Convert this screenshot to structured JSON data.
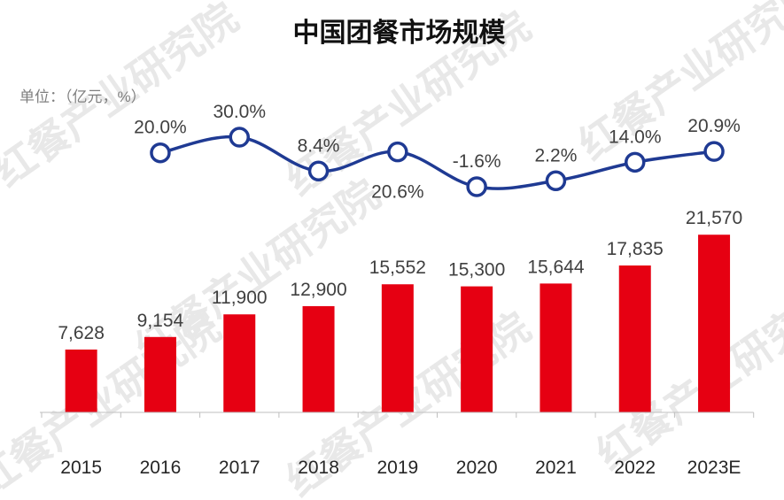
{
  "watermark": "红餐产业研究院",
  "chart_data": {
    "type": "bar+line",
    "title": "中国团餐市场规模",
    "unit_label": "单位：（亿元，%）",
    "categories": [
      "2015",
      "2016",
      "2017",
      "2018",
      "2019",
      "2020",
      "2021",
      "2022",
      "2023E"
    ],
    "series": [
      {
        "type": "bar",
        "values": [
          7628,
          9154,
          11900,
          12900,
          15552,
          15300,
          15644,
          17835,
          21570
        ],
        "labels": [
          "7,628",
          "9,154",
          "11,900",
          "12,900",
          "15,552",
          "15,300",
          "15,644",
          "17,835",
          "21,570"
        ],
        "color": "#e60012"
      },
      {
        "type": "line",
        "values": [
          null,
          20.0,
          30.0,
          8.4,
          20.6,
          -1.6,
          2.2,
          14.0,
          20.9
        ],
        "labels": [
          "",
          "20.0%",
          "30.0%",
          "8.4%",
          "20.6%",
          "-1.6%",
          "2.2%",
          "14.0%",
          "20.9%"
        ],
        "color": "#1f3a93",
        "smooth": true
      }
    ],
    "grid": false,
    "legend": "none"
  }
}
